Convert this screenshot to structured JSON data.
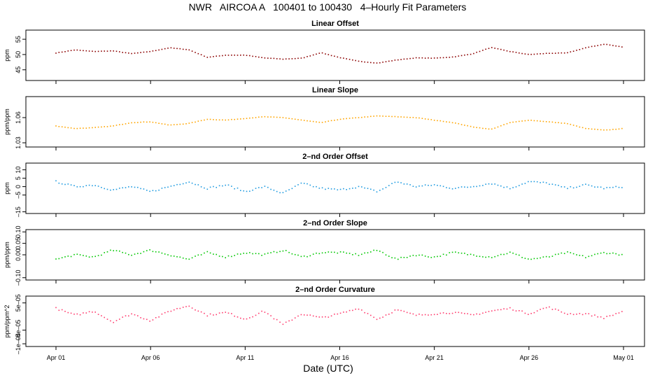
{
  "page_title": "NWR   AIRCOA A   100401 to 100430   4–Hourly Fit Parameters",
  "x_axis": {
    "label": "Date (UTC)",
    "ticks": [
      "Apr 01",
      "Apr 06",
      "Apr 11",
      "Apr 16",
      "Apr 21",
      "Apr 26",
      "May 01"
    ],
    "range_days": [
      0,
      30
    ]
  },
  "chart_data": [
    {
      "type": "scatter",
      "title": "Linear Offset",
      "ylabel": "ppm",
      "yticks": [
        "45",
        "50",
        "55"
      ],
      "ytick_values": [
        45,
        50,
        55
      ],
      "ylim": [
        41.5,
        58
      ],
      "color": "#8b0000",
      "x": [
        0,
        1,
        2,
        3,
        4,
        5,
        6,
        7,
        8,
        9,
        10,
        11,
        12,
        13,
        14,
        15,
        16,
        17,
        18,
        19,
        20,
        21,
        22,
        23,
        24,
        25,
        26,
        27,
        28,
        29,
        30
      ],
      "values": [
        50.5,
        51.5,
        51.0,
        51.2,
        50.3,
        51.0,
        52.2,
        51.6,
        49.1,
        49.8,
        49.8,
        48.9,
        48.5,
        48.8,
        50.6,
        49.0,
        47.8,
        47.2,
        48.2,
        48.9,
        48.8,
        49.2,
        50.2,
        52.3,
        51.0,
        50.0,
        50.4,
        50.5,
        52.2,
        53.4,
        52.4
      ]
    },
    {
      "type": "scatter",
      "title": "Linear Slope",
      "ylabel": "ppm/ppm",
      "yticks": [
        "1.03",
        "1.06"
      ],
      "ytick_values": [
        1.03,
        1.06
      ],
      "ylim": [
        1.025,
        1.085
      ],
      "color": "#ffa500",
      "x": [
        0,
        1,
        2,
        3,
        4,
        5,
        6,
        7,
        8,
        9,
        10,
        11,
        12,
        13,
        14,
        15,
        16,
        17,
        18,
        19,
        20,
        21,
        22,
        23,
        24,
        25,
        26,
        27,
        28,
        29,
        30
      ],
      "values": [
        1.05,
        1.047,
        1.048,
        1.05,
        1.054,
        1.055,
        1.051,
        1.053,
        1.058,
        1.057,
        1.059,
        1.061,
        1.06,
        1.057,
        1.054,
        1.058,
        1.06,
        1.062,
        1.061,
        1.06,
        1.057,
        1.054,
        1.049,
        1.046,
        1.054,
        1.057,
        1.055,
        1.053,
        1.047,
        1.045,
        1.047
      ]
    },
    {
      "type": "scatter",
      "title": "2–nd Order Offset",
      "ylabel": "ppm",
      "yticks": [
        "–15",
        "–5",
        "0",
        "5",
        "10"
      ],
      "ytick_values": [
        -15,
        -5,
        0,
        5,
        10
      ],
      "ylim": [
        -16,
        14
      ],
      "color": "#1e9be0",
      "x": [
        0,
        1,
        2,
        3,
        4,
        5,
        6,
        7,
        8,
        9,
        10,
        11,
        12,
        13,
        14,
        15,
        16,
        17,
        18,
        19,
        20,
        21,
        22,
        23,
        24,
        25,
        26,
        27,
        28,
        29,
        30
      ],
      "values": [
        3,
        0,
        1,
        -2,
        0,
        -3,
        0,
        3,
        -1,
        1,
        -3,
        0,
        -4,
        2,
        -1,
        -2,
        0,
        -3,
        3,
        0,
        1,
        -1,
        0,
        2,
        -1,
        3,
        2,
        -1,
        1,
        -1,
        0
      ]
    },
    {
      "type": "scatter",
      "title": "2–nd Order Slope",
      "ylabel": "ppm/ppm",
      "yticks": [
        "–0.10",
        "0.00",
        "0.05",
        "0.10"
      ],
      "ytick_values": [
        -0.1,
        0.0,
        0.05,
        0.1
      ],
      "ylim": [
        -0.11,
        0.11
      ],
      "color": "#00c800",
      "x": [
        0,
        1,
        2,
        3,
        4,
        5,
        6,
        7,
        8,
        9,
        10,
        11,
        12,
        13,
        14,
        15,
        16,
        17,
        18,
        19,
        20,
        21,
        22,
        23,
        24,
        25,
        26,
        27,
        28,
        29,
        30
      ],
      "values": [
        -0.02,
        0.0,
        -0.01,
        0.02,
        0.0,
        0.02,
        0.0,
        -0.02,
        0.01,
        -0.01,
        0.01,
        0.0,
        0.02,
        -0.01,
        0.01,
        0.01,
        0.0,
        0.02,
        -0.02,
        0.0,
        -0.01,
        0.01,
        0.0,
        -0.01,
        0.01,
        -0.02,
        -0.01,
        0.01,
        -0.01,
        0.01,
        0.0
      ]
    },
    {
      "type": "scatter",
      "title": "2–nd Order Curvature",
      "ylabel": "ppm/ppm^2",
      "yticks": [
        "–1e–04",
        "–5e–05",
        "5e–05"
      ],
      "ytick_values": [
        -0.0001,
        -5e-05,
        5e-05
      ],
      "ylim": [
        -0.00011,
        7.5e-05
      ],
      "color": "#ff3c6e",
      "x": [
        0,
        1,
        2,
        3,
        4,
        5,
        6,
        7,
        8,
        9,
        10,
        11,
        12,
        13,
        14,
        15,
        16,
        17,
        18,
        19,
        20,
        21,
        22,
        23,
        24,
        25,
        26,
        27,
        28,
        29,
        30
      ],
      "values": [
        3e-05,
        5e-06,
        2e-05,
        -2e-05,
        1e-05,
        -1.5e-05,
        2e-05,
        4e-05,
        5e-06,
        1.5e-05,
        -1e-05,
        2e-05,
        -3e-05,
        1e-05,
        -5e-06,
        1e-05,
        3e-05,
        -1e-05,
        2.5e-05,
        5e-06,
        1e-05,
        1.5e-05,
        5e-06,
        2e-05,
        3e-05,
        1e-05,
        3.5e-05,
        1e-05,
        1e-05,
        -5e-06,
        2e-05
      ]
    }
  ]
}
